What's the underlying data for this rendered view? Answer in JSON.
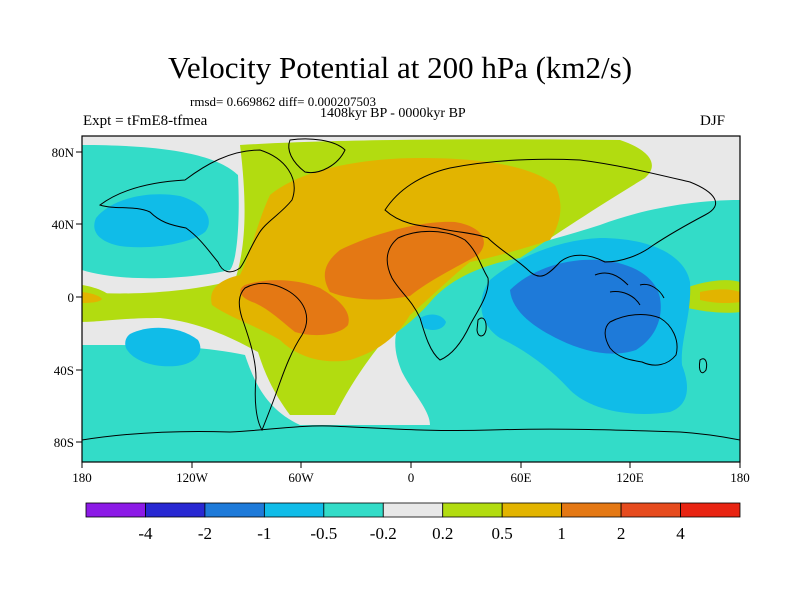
{
  "title": "Velocity Potential at 200 hPa (km2/s)",
  "stats": "rmsd= 0.669862 diff= 0.000207503",
  "period": "1408kyr BP - 0000kyr BP",
  "experiment": "Expt = tFmE8-tfmea",
  "season": "DJF",
  "x_tick_labels": [
    "180",
    "120W",
    "60W",
    "0",
    "60E",
    "120E",
    "180"
  ],
  "y_tick_labels": [
    "80N",
    "40N",
    "0",
    "40S",
    "80S"
  ],
  "colorbar": {
    "colors": [
      "#8c1ae6",
      "#2828d2",
      "#1e7ad9",
      "#10bce8",
      "#33dcc8",
      "#e8e8e8",
      "#b2dc10",
      "#e2b400",
      "#e47814",
      "#e64b1e",
      "#e82412"
    ],
    "labels": [
      "-4",
      "-2",
      "-1",
      "-0.5",
      "-0.2",
      "0.2",
      "0.5",
      "1",
      "2",
      "4"
    ]
  }
}
